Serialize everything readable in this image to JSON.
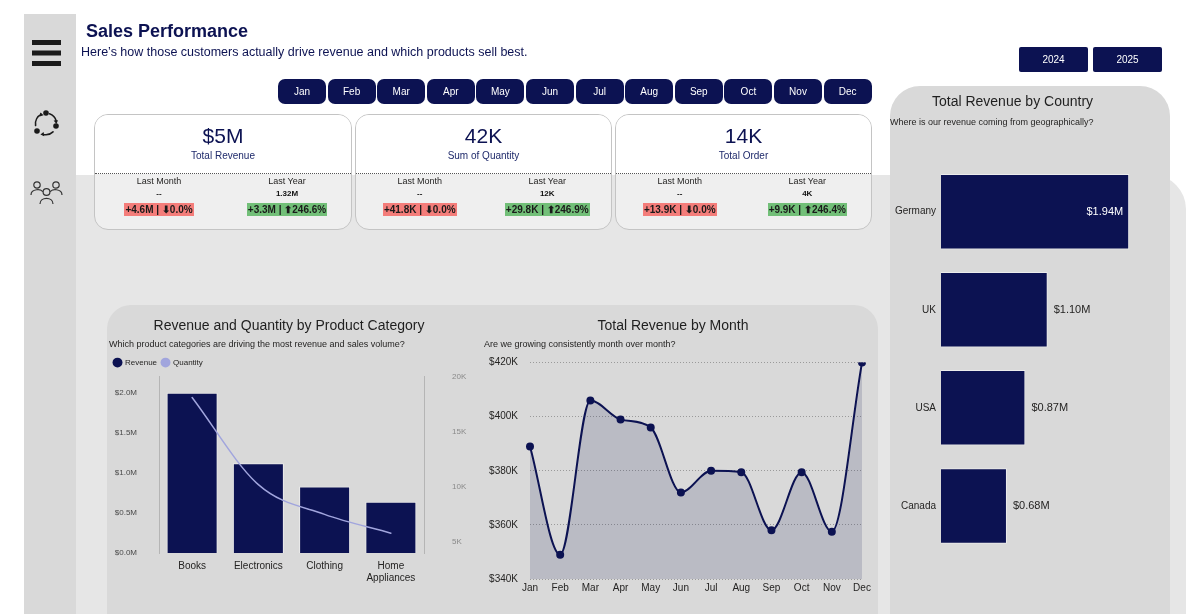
{
  "chart_data": [
    {
      "type": "other",
      "title": "Sales Performance",
      "subtitle": "Here’s how those customers actually drive revenue and which products sell best."
    },
    {
      "type": "other",
      "annotations": [
        "2024",
        "2025"
      ]
    },
    {
      "type": "other",
      "annotations": [
        "Jan",
        "Feb",
        "Mar",
        "Apr",
        "May",
        "Jun",
        "Jul",
        "Aug",
        "Sep",
        "Oct",
        "Nov",
        "Dec"
      ]
    },
    {
      "type": "other",
      "title": "Total Revenue",
      "annotations": [
        "$5M",
        "Last Month",
        "--",
        "+4.6M | ⬇0.0%",
        "Last Year",
        "1.32M",
        "+3.3M | ⬆246.6%"
      ]
    },
    {
      "type": "other",
      "title": "Sum of Quantity",
      "annotations": [
        "42K",
        "Last Month",
        "--",
        "+41.8K | ⬇0.0%",
        "Last Year",
        "12K",
        "+29.8K | ⬆246.9%"
      ]
    },
    {
      "type": "other",
      "title": "Total Order",
      "annotations": [
        "14K",
        "Last Month",
        "--",
        "+13.9K | ⬇0.0%",
        "Last Year",
        "4K",
        "+9.9K | ⬆246.4%"
      ]
    },
    {
      "type": "bar",
      "orientation": "horizontal",
      "title": "Total Revenue by Country",
      "subtitle": "Where is our revenue coming from geographically?",
      "categories": [
        "Germany",
        "UK",
        "USA",
        "Canada"
      ],
      "values": [
        1940000,
        1100000,
        870000,
        680000
      ],
      "value_labels": [
        "$1.94M",
        "$1.10M",
        "$0.87M",
        "$0.68M"
      ],
      "color": "#0c1252"
    },
    {
      "type": "bar",
      "title": "Revenue and Quantity by Product Category",
      "subtitle": "Which product categories are driving the most revenue and sales volume?",
      "categories": [
        "Books",
        "Electronics",
        "Clothing",
        "Home Appliances"
      ],
      "series": [
        {
          "name": "Revenue",
          "color": "#0c1252",
          "values": [
            2000000,
            1120000,
            830000,
            640000
          ]
        },
        {
          "name": "Quantity",
          "type": "line",
          "axis": "y2",
          "color": "#a1a5dd",
          "values": [
            18100,
            10200,
            7500,
            5800
          ]
        }
      ],
      "ylim": [
        0,
        2200000
      ],
      "yticks": [
        {
          "value": 0,
          "label": "$0.0M"
        },
        {
          "value": 500000,
          "label": "$0.5M"
        },
        {
          "value": 1000000,
          "label": "$1.0M"
        },
        {
          "value": 1500000,
          "label": "$1.5M"
        },
        {
          "value": 2000000,
          "label": "$2.0M"
        }
      ],
      "y2lim": [
        4000,
        20000
      ],
      "y2ticks": [
        {
          "value": 5000,
          "label": "5K"
        },
        {
          "value": 10000,
          "label": "10K"
        },
        {
          "value": 15000,
          "label": "15K"
        },
        {
          "value": 20000,
          "label": "20K"
        }
      ],
      "legend": "top left"
    },
    {
      "type": "area",
      "title": "Total Revenue by Month",
      "subtitle": "Are we growing consistently month over month?",
      "categories": [
        "Jan",
        "Feb",
        "Mar",
        "Apr",
        "May",
        "Jun",
        "Jul",
        "Aug",
        "Sep",
        "Oct",
        "Nov",
        "Dec"
      ],
      "values": [
        389000,
        349000,
        406000,
        399000,
        396000,
        372000,
        380000,
        379500,
        358000,
        379500,
        357500,
        420000
      ],
      "color": "#0c1252",
      "ylim": [
        340000,
        420000
      ],
      "yticks": [
        {
          "value": 340000,
          "label": "$340K"
        },
        {
          "value": 360000,
          "label": "$360K"
        },
        {
          "value": 380000,
          "label": "$380K"
        },
        {
          "value": 400000,
          "label": "$400K"
        },
        {
          "value": 420000,
          "label": "$420K"
        }
      ],
      "grid": "y",
      "marker": "circle"
    }
  ]
}
